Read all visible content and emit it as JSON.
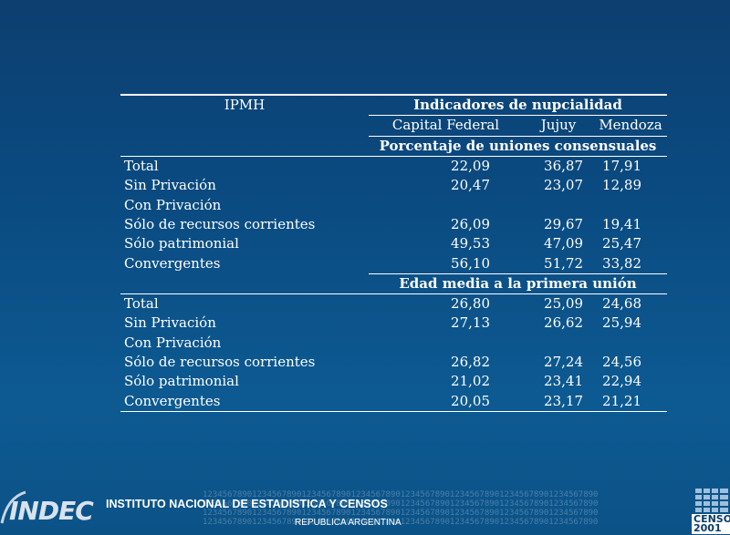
{
  "table": {
    "row_header": "IPMH",
    "group_title": "Indicadores de nupcialidad",
    "columns": [
      "Capital Federal",
      "Jujuy",
      "Mendoza"
    ],
    "sections": [
      {
        "title": "Porcentaje de uniones consensuales",
        "rows": [
          {
            "label": "Total",
            "values": [
              "22,09",
              "36,87",
              "17,91"
            ]
          },
          {
            "label": "Sin Privación",
            "values": [
              "20,47",
              "23,07",
              "12,89"
            ]
          },
          {
            "label": "Con Privación",
            "values": [
              "",
              "",
              ""
            ]
          },
          {
            "label": "Sólo de recursos corrientes",
            "values": [
              "26,09",
              "29,67",
              "19,41"
            ]
          },
          {
            "label": "Sólo patrimonial",
            "values": [
              "49,53",
              "47,09",
              "25,47"
            ]
          },
          {
            "label": "Convergentes",
            "values": [
              "56,10",
              "51,72",
              "33,82"
            ]
          }
        ]
      },
      {
        "title": "Edad media a la primera unión",
        "rows": [
          {
            "label": "Total",
            "values": [
              "26,80",
              "25,09",
              "24,68"
            ]
          },
          {
            "label": "Sin Privación",
            "values": [
              "27,13",
              "26,62",
              "25,94"
            ]
          },
          {
            "label": "Con Privación",
            "values": [
              "",
              "",
              ""
            ]
          },
          {
            "label": "Sólo de recursos corrientes",
            "values": [
              "26,82",
              "27,24",
              "24,56"
            ]
          },
          {
            "label": "Sólo patrimonial",
            "values": [
              "21,02",
              "23,41",
              "22,94"
            ]
          },
          {
            "label": "Convergentes",
            "values": [
              "20,05",
              "23,17",
              "21,21"
            ]
          }
        ]
      }
    ]
  },
  "footer": {
    "logo_text": "INDEC",
    "institute": "INSTITUTO NACIONAL DE ESTADISTICA Y CENSOS",
    "country": "REPUBLICA ARGENTINA",
    "number_pattern": "12345678901234567890123456789012345678901234567890123456789012345678901234567890",
    "censo_label": "CENSO",
    "censo_year": "2001"
  },
  "colors": {
    "background_top": "#0d3f70",
    "background_bottom": "#0b5287",
    "text": "#ffffff"
  }
}
